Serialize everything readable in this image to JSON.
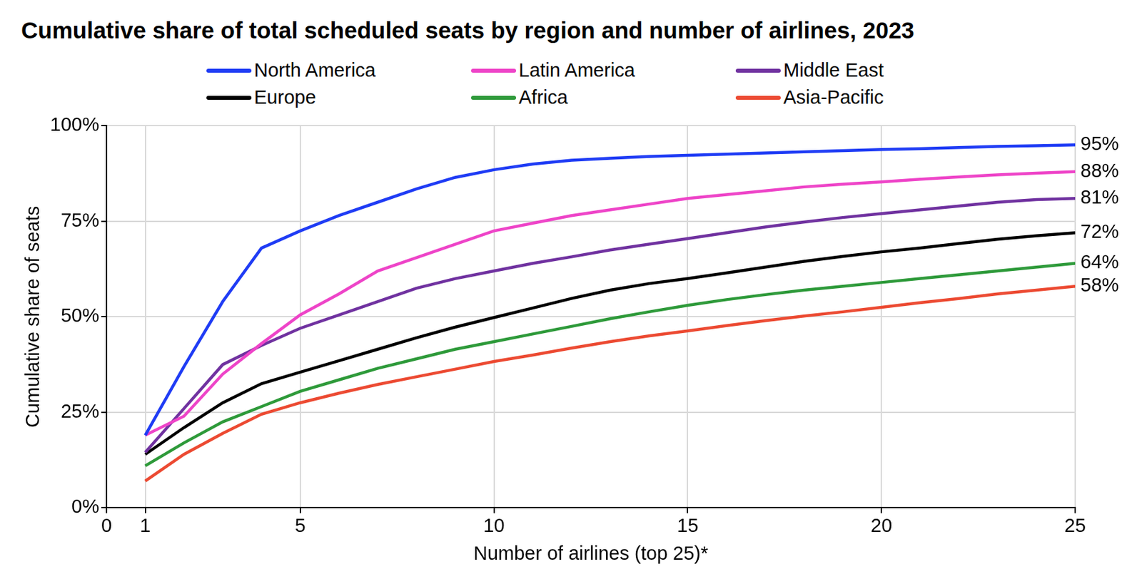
{
  "chart_data": {
    "type": "line",
    "title": "Cumulative share of total scheduled seats by region and number of airlines, 2023",
    "xlabel": "Number of airlines (top 25)*",
    "ylabel": "Cumulative share of seats",
    "x": [
      1,
      2,
      3,
      4,
      5,
      6,
      7,
      8,
      9,
      10,
      11,
      12,
      13,
      14,
      15,
      16,
      17,
      18,
      19,
      20,
      21,
      22,
      23,
      24,
      25
    ],
    "series": [
      {
        "name": "North America",
        "color": "#1f3cf5",
        "end_label": "95%",
        "values": [
          19,
          37,
          54,
          68,
          72.5,
          76.5,
          80,
          83.5,
          86.5,
          88.5,
          90,
          91,
          91.5,
          92,
          92.3,
          92.6,
          92.9,
          93.2,
          93.5,
          93.8,
          94,
          94.3,
          94.6,
          94.8,
          95
        ]
      },
      {
        "name": "Latin America",
        "color": "#ee44c8",
        "end_label": "88%",
        "values": [
          19,
          24,
          35,
          43,
          50.5,
          56,
          62,
          65.5,
          69,
          72.5,
          74.5,
          76.5,
          78,
          79.5,
          81,
          82,
          83,
          84,
          84.7,
          85.3,
          86,
          86.6,
          87.2,
          87.6,
          88
        ]
      },
      {
        "name": "Middle East",
        "color": "#7032a0",
        "end_label": "81%",
        "values": [
          14.5,
          26,
          37.5,
          42.5,
          47,
          50.5,
          54,
          57.5,
          60,
          62,
          64,
          65.7,
          67.5,
          69,
          70.5,
          72,
          73.5,
          74.8,
          76,
          77,
          78,
          79,
          80,
          80.7,
          81
        ]
      },
      {
        "name": "Europe",
        "color": "#000000",
        "end_label": "72%",
        "values": [
          14,
          21,
          27.5,
          32.5,
          35.5,
          38.5,
          41.5,
          44.5,
          47.3,
          49.8,
          52.3,
          54.8,
          57,
          58.7,
          60,
          61.5,
          63,
          64.5,
          65.8,
          67,
          68,
          69.2,
          70.3,
          71.2,
          72
        ]
      },
      {
        "name": "Africa",
        "color": "#2e9a3a",
        "end_label": "64%",
        "values": [
          11,
          17,
          22.5,
          26.5,
          30.5,
          33.5,
          36.5,
          39,
          41.5,
          43.5,
          45.5,
          47.5,
          49.5,
          51.3,
          53,
          54.5,
          55.8,
          57,
          58,
          59,
          60,
          61,
          62,
          63,
          64
        ]
      },
      {
        "name": "Asia-Pacific",
        "color": "#ec4a32",
        "end_label": "58%",
        "values": [
          7,
          14,
          19.5,
          24.5,
          27.5,
          30,
          32.3,
          34.3,
          36.3,
          38.3,
          40,
          41.8,
          43.5,
          45,
          46.3,
          47.7,
          49,
          50.2,
          51.3,
          52.5,
          53.7,
          54.8,
          56,
          57,
          58
        ]
      }
    ],
    "xlim": [
      0,
      25
    ],
    "xticks": [
      0,
      1,
      5,
      10,
      15,
      20,
      25
    ],
    "ylim": [
      0,
      100
    ],
    "yticks": [
      {
        "value": 0,
        "label": "0%"
      },
      {
        "value": 25,
        "label": "25%"
      },
      {
        "value": 50,
        "label": "50%"
      },
      {
        "value": 75,
        "label": "75%"
      },
      {
        "value": 100,
        "label": "100%"
      }
    ],
    "grid": true,
    "legend": "top"
  }
}
